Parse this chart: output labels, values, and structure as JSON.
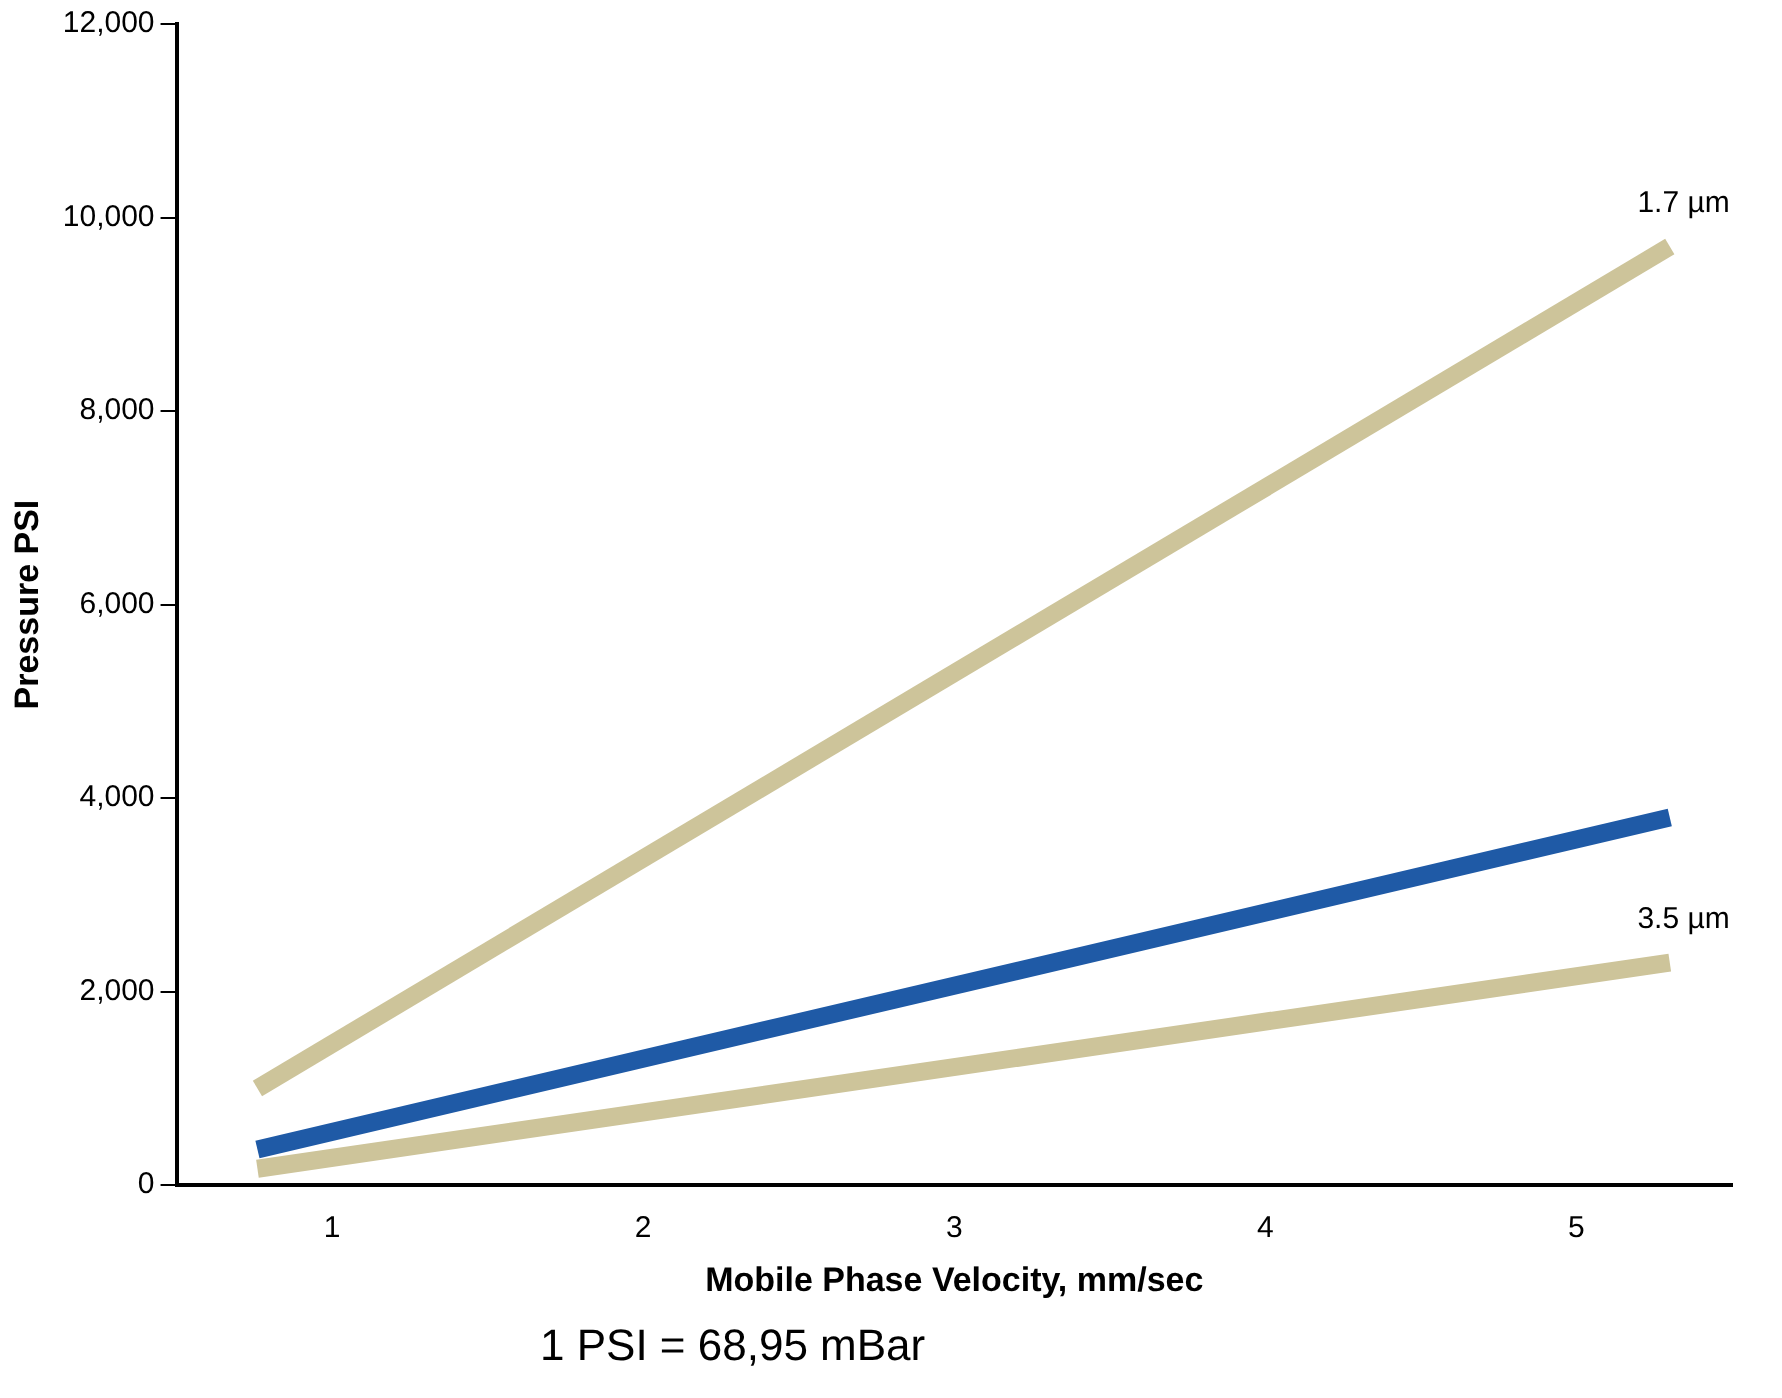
{
  "chart_data": {
    "type": "line",
    "xlabel": "Mobile Phase Velocity, mm/sec",
    "ylabel": "Pressure PSI",
    "xlim": [
      0.5,
      5.5
    ],
    "xticks": [
      1,
      2,
      3,
      4,
      5
    ],
    "ylim": [
      0,
      12000
    ],
    "yticks": [
      0,
      {
        "value": 2000,
        "label": "2,000"
      },
      {
        "value": 4000,
        "label": "4,000"
      },
      {
        "value": 6000,
        "label": "6,000"
      },
      {
        "value": 8000,
        "label": "8,000"
      },
      {
        "value": 10000,
        "label": "10,000"
      },
      {
        "value": 12000,
        "label": "12,000"
      }
    ],
    "x": [
      0.76,
      5.3
    ],
    "grid": false,
    "legend": false,
    "marker": "none",
    "line_style": "solid",
    "series": [
      {
        "name": "1.7 µm",
        "color": "#cdc49a",
        "values": [
          1000,
          9700
        ]
      },
      {
        "color": "#1f5aa6",
        "values": [
          370,
          3800
        ]
      },
      {
        "name": "3.5 µm",
        "color": "#cdc49a",
        "values": [
          170,
          2300
        ]
      }
    ],
    "annotations": [
      "1 PSI = 68,95 mBar"
    ]
  }
}
